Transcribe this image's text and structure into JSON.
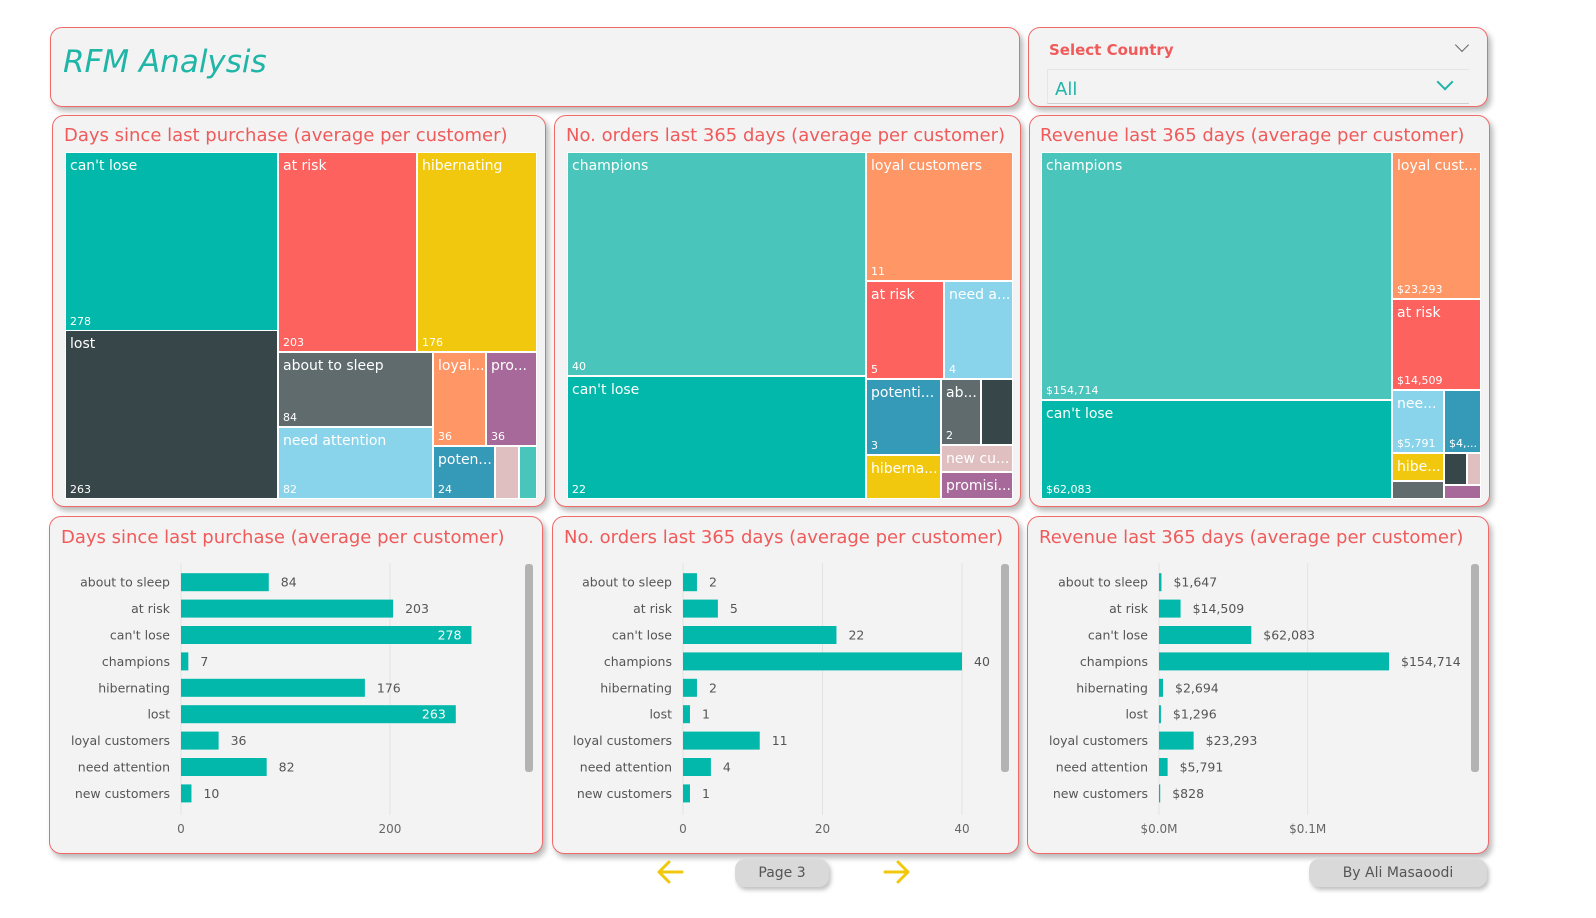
{
  "header": {
    "title": "RFM Analysis"
  },
  "slicer": {
    "label": "Select Country",
    "value": "All"
  },
  "colors": {
    "teal": "#01b8aa",
    "dark": "#374649",
    "red": "#fd625e",
    "yellow": "#f2c80f",
    "gray": "#5f6b6d",
    "light_blue": "#8ad4eb",
    "orange": "#fe9666",
    "purple": "#a66999",
    "blue": "#3599b8",
    "pink": "#dfbfbf",
    "mint": "#4ac5bb",
    "bar": "#01b8aa",
    "title": "#f05a5a"
  },
  "treemaps": [
    {
      "title": "Days since last purchase (average per customer)",
      "tiles": [
        {
          "label": "can't lose",
          "value": "278",
          "color": "teal"
        },
        {
          "label": "lost",
          "value": "263",
          "color": "dark"
        },
        {
          "label": "at risk",
          "value": "203",
          "color": "red"
        },
        {
          "label": "hibernating",
          "value": "176",
          "color": "yellow"
        },
        {
          "label": "about to sleep",
          "value": "84",
          "color": "gray"
        },
        {
          "label": "need attention",
          "value": "82",
          "color": "light_blue"
        },
        {
          "label": "loyal...",
          "value": "36",
          "color": "orange"
        },
        {
          "label": "pro...",
          "value": "36",
          "color": "purple"
        },
        {
          "label": "poten...",
          "value": "24",
          "color": "blue"
        },
        {
          "label": "",
          "value": "",
          "color": "pink"
        },
        {
          "label": "",
          "value": "",
          "color": "mint"
        }
      ]
    },
    {
      "title": "No. orders last 365 days (average per customer)",
      "tiles": [
        {
          "label": "champions",
          "value": "40",
          "color": "mint"
        },
        {
          "label": "can't lose",
          "value": "22",
          "color": "teal"
        },
        {
          "label": "loyal customers",
          "value": "11",
          "color": "orange"
        },
        {
          "label": "at risk",
          "value": "5",
          "color": "red"
        },
        {
          "label": "need a...",
          "value": "4",
          "color": "light_blue"
        },
        {
          "label": "potenti...",
          "value": "3",
          "color": "blue"
        },
        {
          "label": "ab...",
          "value": "2",
          "color": "gray"
        },
        {
          "label": "",
          "value": "",
          "color": "dark"
        },
        {
          "label": "hiberna...",
          "value": "",
          "color": "yellow"
        },
        {
          "label": "new cu...",
          "value": "",
          "color": "pink"
        },
        {
          "label": "promisi...",
          "value": "",
          "color": "purple"
        }
      ]
    },
    {
      "title": "Revenue last 365 days (average per customer)",
      "tiles": [
        {
          "label": "champions",
          "value": "$154,714",
          "color": "mint"
        },
        {
          "label": "can't lose",
          "value": "$62,083",
          "color": "teal"
        },
        {
          "label": "loyal cust...",
          "value": "$23,293",
          "color": "orange"
        },
        {
          "label": "at risk",
          "value": "$14,509",
          "color": "red"
        },
        {
          "label": "nee...",
          "value": "$5,791",
          "color": "light_blue"
        },
        {
          "label": "",
          "value": "$4,...",
          "color": "blue"
        },
        {
          "label": "hibe...",
          "value": "",
          "color": "yellow"
        },
        {
          "label": "",
          "value": "",
          "color": "dark"
        },
        {
          "label": "",
          "value": "",
          "color": "pink"
        },
        {
          "label": "",
          "value": "",
          "color": "gray"
        },
        {
          "label": "",
          "value": "",
          "color": "purple"
        }
      ]
    }
  ],
  "chart_data": [
    {
      "type": "bar",
      "orientation": "horizontal",
      "title": "Days since last purchase (average per customer)",
      "categories": [
        "about to sleep",
        "at risk",
        "can't lose",
        "champions",
        "hibernating",
        "lost",
        "loyal customers",
        "need attention",
        "new customers"
      ],
      "values": [
        84,
        203,
        278,
        7,
        176,
        263,
        36,
        82,
        10
      ],
      "data_labels": [
        "84",
        "203",
        "278",
        "7",
        "176",
        "263",
        "36",
        "82",
        "10"
      ],
      "xlim": [
        0,
        290
      ],
      "xticks": [
        0,
        200
      ],
      "xtick_labels": [
        "0",
        "200"
      ],
      "grid": true
    },
    {
      "type": "bar",
      "orientation": "horizontal",
      "title": "No. orders last 365 days (average per customer)",
      "categories": [
        "about to sleep",
        "at risk",
        "can't lose",
        "champions",
        "hibernating",
        "lost",
        "loyal customers",
        "need attention",
        "new customers"
      ],
      "values": [
        2,
        5,
        22,
        40,
        2,
        1,
        11,
        4,
        1
      ],
      "data_labels": [
        "2",
        "5",
        "22",
        "40",
        "2",
        "1",
        "11",
        "4",
        "1"
      ],
      "xlim": [
        0,
        40
      ],
      "xticks": [
        0,
        20,
        40
      ],
      "xtick_labels": [
        "0",
        "20",
        "40"
      ],
      "grid": true
    },
    {
      "type": "bar",
      "orientation": "horizontal",
      "title": "Revenue last 365 days (average per customer)",
      "categories": [
        "about to sleep",
        "at risk",
        "can't lose",
        "champions",
        "hibernating",
        "lost",
        "loyal customers",
        "need attention",
        "new customers"
      ],
      "values": [
        1647,
        14509,
        62083,
        154714,
        2694,
        1296,
        23293,
        5791,
        828
      ],
      "data_labels": [
        "$1,647",
        "$14,509",
        "$62,083",
        "$154,714",
        "$2,694",
        "$1,296",
        "$23,293",
        "$5,791",
        "$828"
      ],
      "xlim": [
        0,
        154714
      ],
      "xticks": [
        0,
        100000
      ],
      "xtick_labels": [
        "$0.0M",
        "$0.1M"
      ],
      "grid": true
    }
  ],
  "navigation": {
    "page_label": "Page 3",
    "prev_icon": "arrow-left-icon",
    "next_icon": "arrow-right-icon"
  },
  "footer": {
    "author": "By Ali Masaoodi"
  }
}
